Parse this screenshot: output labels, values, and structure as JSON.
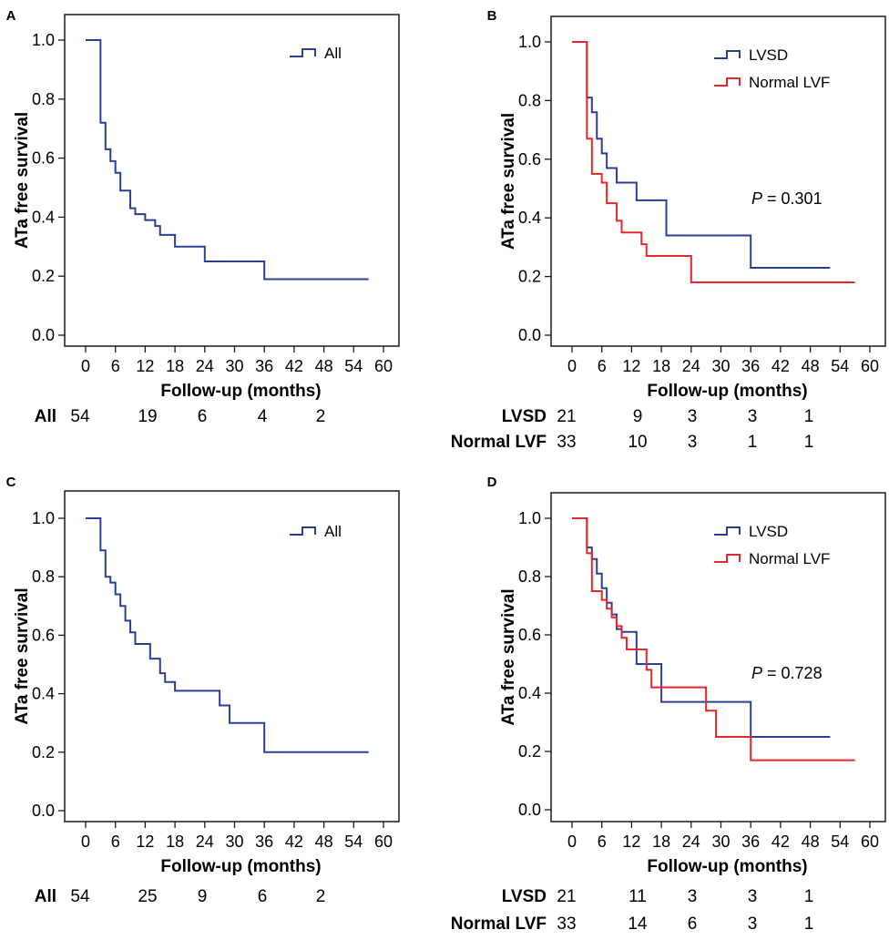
{
  "colors": {
    "all": "#2a3f96",
    "lvsd": "#2a3f96",
    "normal_lvf": "#e8262a",
    "axis": "#1a1a1a"
  },
  "chart_data": [
    {
      "panel": "A",
      "type": "line",
      "step": true,
      "xlabel": "Follow-up (months)",
      "ylabel": "ATa free survival",
      "xticks": [
        0,
        6,
        12,
        18,
        24,
        30,
        36,
        42,
        48,
        54,
        60
      ],
      "yticks": [
        "0.0",
        "0.2",
        "0.4",
        "0.6",
        "0.8",
        "1.0"
      ],
      "xlim": [
        0,
        60
      ],
      "ylim": [
        0,
        1
      ],
      "legend": [
        "All"
      ],
      "series": [
        {
          "name": "All",
          "color_key": "all",
          "x": [
            0,
            3,
            4,
            5,
            6,
            7,
            9,
            10,
            12,
            14,
            15,
            18,
            24,
            36,
            57
          ],
          "y": [
            1.0,
            0.72,
            0.63,
            0.59,
            0.55,
            0.49,
            0.43,
            0.41,
            0.39,
            0.37,
            0.34,
            0.3,
            0.25,
            0.19,
            0.19
          ]
        }
      ],
      "risk_table": {
        "times": [
          0,
          12,
          24,
          36,
          48
        ],
        "rows": [
          {
            "label": "All",
            "values": [
              "54",
              "19",
              "6",
              "4",
              "2"
            ]
          }
        ]
      }
    },
    {
      "panel": "B",
      "type": "line",
      "step": true,
      "xlabel": "Follow-up (months)",
      "ylabel": "ATa free survival",
      "xticks": [
        0,
        6,
        12,
        18,
        24,
        30,
        36,
        42,
        48,
        54,
        60
      ],
      "yticks": [
        "0.0",
        "0.2",
        "0.4",
        "0.6",
        "0.8",
        "1.0"
      ],
      "xlim": [
        0,
        60
      ],
      "ylim": [
        0,
        1
      ],
      "legend": [
        "LVSD",
        "Normal LVF"
      ],
      "p_label": "P",
      "p_text": "= 0.301",
      "series": [
        {
          "name": "LVSD",
          "color_key": "lvsd",
          "x": [
            0,
            3,
            4,
            5,
            6,
            7,
            9,
            11,
            13,
            19,
            36,
            52
          ],
          "y": [
            1.0,
            0.81,
            0.76,
            0.67,
            0.62,
            0.57,
            0.52,
            0.52,
            0.46,
            0.34,
            0.23,
            0.23
          ]
        },
        {
          "name": "Normal LVF",
          "color_key": "normal_lvf",
          "x": [
            0,
            3,
            4,
            6,
            7,
            9,
            10,
            12,
            14,
            15,
            24,
            57
          ],
          "y": [
            1.0,
            0.67,
            0.55,
            0.52,
            0.45,
            0.39,
            0.35,
            0.35,
            0.31,
            0.27,
            0.18,
            0.18
          ]
        }
      ],
      "risk_table": {
        "times": [
          0,
          12,
          24,
          36,
          48
        ],
        "rows": [
          {
            "label": "LVSD",
            "values": [
              "21",
              "9",
              "3",
              "3",
              "1"
            ]
          },
          {
            "label": "Normal LVF",
            "values": [
              "33",
              "10",
              "3",
              "1",
              "1"
            ]
          }
        ]
      }
    },
    {
      "panel": "C",
      "type": "line",
      "step": true,
      "xlabel": "Follow-up (months)",
      "ylabel": "ATa free survival",
      "xticks": [
        0,
        6,
        12,
        18,
        24,
        30,
        36,
        42,
        48,
        54,
        60
      ],
      "yticks": [
        "0.0",
        "0.2",
        "0.4",
        "0.6",
        "0.8",
        "1.0"
      ],
      "xlim": [
        0,
        60
      ],
      "ylim": [
        0,
        1
      ],
      "legend": [
        "All"
      ],
      "series": [
        {
          "name": "All",
          "color_key": "all",
          "x": [
            0,
            3,
            4,
            5,
            6,
            7,
            8,
            9,
            10,
            11,
            13,
            15,
            16,
            18,
            27,
            29,
            36,
            57
          ],
          "y": [
            1.0,
            0.89,
            0.8,
            0.78,
            0.74,
            0.7,
            0.65,
            0.61,
            0.57,
            0.57,
            0.52,
            0.47,
            0.44,
            0.41,
            0.36,
            0.3,
            0.2,
            0.2
          ]
        }
      ],
      "risk_table": {
        "times": [
          0,
          12,
          24,
          36,
          48
        ],
        "rows": [
          {
            "label": "All",
            "values": [
              "54",
              "25",
              "9",
              "6",
              "2"
            ]
          }
        ]
      }
    },
    {
      "panel": "D",
      "type": "line",
      "step": true,
      "xlabel": "Follow-up (months)",
      "ylabel": "ATa free survival",
      "xticks": [
        0,
        6,
        12,
        18,
        24,
        30,
        36,
        42,
        48,
        54,
        60
      ],
      "yticks": [
        "0.0",
        "0.2",
        "0.4",
        "0.6",
        "0.8",
        "1.0"
      ],
      "xlim": [
        0,
        60
      ],
      "ylim": [
        0,
        1
      ],
      "legend": [
        "LVSD",
        "Normal LVF"
      ],
      "p_label": "P",
      "p_text": "= 0.728",
      "series": [
        {
          "name": "LVSD",
          "color_key": "lvsd",
          "x": [
            0,
            3,
            4,
            5,
            6,
            7,
            8,
            9,
            10,
            12,
            13,
            15,
            18,
            36,
            52
          ],
          "y": [
            1.0,
            0.9,
            0.86,
            0.81,
            0.76,
            0.71,
            0.67,
            0.62,
            0.61,
            0.61,
            0.5,
            0.5,
            0.37,
            0.25,
            0.25
          ]
        },
        {
          "name": "Normal LVF",
          "color_key": "normal_lvf",
          "x": [
            0,
            3,
            4,
            6,
            7,
            8,
            9,
            10,
            11,
            13,
            15,
            16,
            27,
            29,
            36,
            57
          ],
          "y": [
            1.0,
            0.88,
            0.75,
            0.72,
            0.69,
            0.66,
            0.63,
            0.59,
            0.55,
            0.55,
            0.48,
            0.42,
            0.34,
            0.25,
            0.17,
            0.17
          ]
        }
      ],
      "risk_table": {
        "times": [
          0,
          12,
          24,
          36,
          48
        ],
        "rows": [
          {
            "label": "LVSD",
            "values": [
              "21",
              "11",
              "3",
              "3",
              "1"
            ]
          },
          {
            "label": "Normal LVF",
            "values": [
              "33",
              "14",
              "6",
              "3",
              "1"
            ]
          }
        ]
      }
    }
  ]
}
